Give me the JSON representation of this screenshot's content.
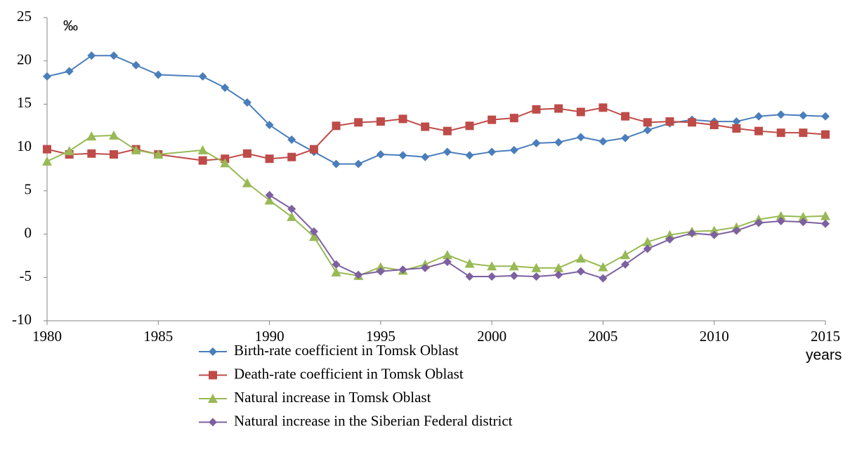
{
  "chart_data": {
    "type": "line",
    "y_label": "‰",
    "x_label": "years",
    "x": [
      1980,
      1981,
      1982,
      1983,
      1984,
      1985,
      1987,
      1988,
      1989,
      1990,
      1991,
      1992,
      1993,
      1994,
      1995,
      1996,
      1997,
      1998,
      1999,
      2000,
      2001,
      2002,
      2003,
      2004,
      2005,
      2006,
      2007,
      2008,
      2009,
      2010,
      2011,
      2012,
      2013,
      2014,
      2015
    ],
    "xlim": [
      1980,
      2015
    ],
    "xticks": [
      1980,
      1985,
      1990,
      1995,
      2000,
      2005,
      2010,
      2015
    ],
    "ylim": [
      -10,
      25
    ],
    "yticks": [
      -10,
      -5,
      0,
      5,
      10,
      15,
      20,
      25
    ],
    "grid": false,
    "legend": "bottom",
    "series": [
      {
        "name": "Birth-rate coefficient in Tomsk Oblast",
        "color": "#4a7ebb",
        "marker": "diamond",
        "values": [
          18.2,
          18.8,
          20.6,
          20.6,
          19.5,
          18.4,
          18.2,
          16.9,
          15.2,
          12.6,
          10.9,
          9.5,
          8.1,
          8.1,
          9.2,
          9.1,
          8.9,
          9.5,
          9.1,
          9.5,
          9.7,
          10.5,
          10.6,
          11.2,
          10.7,
          11.1,
          12.0,
          12.8,
          13.2,
          13.0,
          13.0,
          13.6,
          13.8,
          13.7,
          13.6
        ]
      },
      {
        "name": "Death-rate coefficient in Tomsk Oblast",
        "color": "#be4b48",
        "marker": "square",
        "values": [
          9.8,
          9.2,
          9.3,
          9.2,
          9.8,
          9.2,
          8.5,
          8.7,
          9.3,
          8.7,
          8.9,
          9.8,
          12.5,
          12.9,
          13.0,
          13.3,
          12.4,
          11.9,
          12.5,
          13.2,
          13.4,
          14.4,
          14.5,
          14.1,
          14.6,
          13.6,
          12.9,
          13.0,
          12.9,
          12.6,
          12.2,
          11.9,
          11.7,
          11.7,
          11.5
        ]
      },
      {
        "name": "Natural increase in Tomsk Oblast",
        "color": "#98b954",
        "marker": "triangle",
        "values": [
          8.4,
          9.6,
          11.3,
          11.4,
          9.7,
          9.2,
          9.7,
          8.2,
          5.9,
          3.9,
          2.0,
          -0.3,
          -4.4,
          -4.8,
          -3.8,
          -4.2,
          -3.5,
          -2.4,
          -3.4,
          -3.7,
          -3.7,
          -3.9,
          -3.9,
          -2.8,
          -3.8,
          -2.4,
          -0.9,
          -0.1,
          0.3,
          0.4,
          0.8,
          1.7,
          2.1,
          2.0,
          2.1
        ]
      },
      {
        "name": "Natural increase in the Siberian Federal district",
        "color": "#7d60a0",
        "marker": "diamond",
        "values": [
          null,
          null,
          null,
          null,
          null,
          null,
          null,
          null,
          null,
          4.5,
          2.9,
          0.3,
          -3.5,
          -4.7,
          -4.3,
          -4.1,
          -3.9,
          -3.2,
          -4.9,
          -4.9,
          -4.8,
          -4.9,
          -4.7,
          -4.3,
          -5.1,
          -3.5,
          -1.7,
          -0.6,
          0.1,
          -0.1,
          0.4,
          1.3,
          1.5,
          1.4,
          1.2
        ]
      }
    ]
  }
}
